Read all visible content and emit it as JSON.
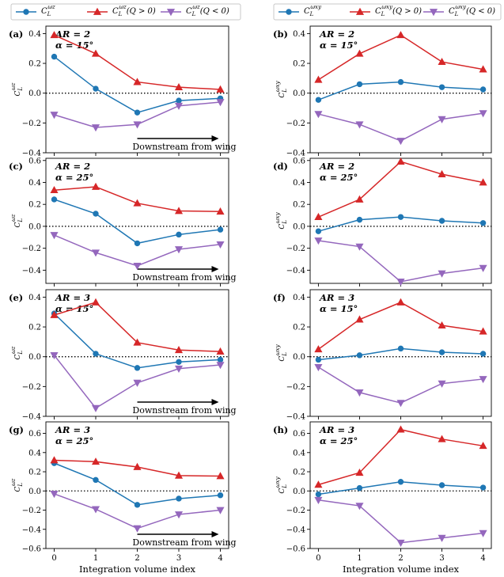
{
  "legends": {
    "left": {
      "entries": [
        {
          "main": "C",
          "sub": "L",
          "sup": "ωz",
          "suffix": "",
          "color": "#1f77b4",
          "marker": "circle"
        },
        {
          "main": "C",
          "sub": "L",
          "sup": "ωz",
          "suffix": "(Q > 0)",
          "color": "#d62728",
          "marker": "triangle-up"
        },
        {
          "main": "C",
          "sub": "L",
          "sup": "ωz",
          "suffix": "(Q < 0)",
          "color": "#9467bd",
          "marker": "triangle-down"
        }
      ]
    },
    "right": {
      "entries": [
        {
          "main": "C",
          "sub": "L",
          "sup": "ωxy",
          "suffix": "",
          "color": "#1f77b4",
          "marker": "circle"
        },
        {
          "main": "C",
          "sub": "L",
          "sup": "ωxy",
          "suffix": "(Q > 0)",
          "color": "#d62728",
          "marker": "triangle-up"
        },
        {
          "main": "C",
          "sub": "L",
          "sup": "ωxy",
          "suffix": "(Q < 0)",
          "color": "#9467bd",
          "marker": "triangle-down"
        }
      ]
    }
  },
  "xlabel": "Integration volume index",
  "downstream_label": "Downstream from wing",
  "chart_data": [
    {
      "type": "line",
      "panel": "(a)",
      "ar_label": "AR = 2",
      "alpha_label": "α = 15°",
      "ylabel": {
        "main": "C",
        "sub": "L",
        "sup": "ωz"
      },
      "x": [
        0,
        1,
        2,
        3,
        4
      ],
      "xlim": [
        -0.2,
        4.2
      ],
      "ylim": [
        -0.4,
        0.45
      ],
      "yticks": [
        -0.4,
        -0.2,
        0.0,
        0.2,
        0.4
      ],
      "xticks": [
        0,
        1,
        2,
        3,
        4
      ],
      "show_xticklabels": false,
      "downstream_arrow": true,
      "series": [
        {
          "name": "Total",
          "color": "#1f77b4",
          "marker": "circle",
          "values": [
            0.245,
            0.03,
            -0.13,
            -0.05,
            -0.035
          ]
        },
        {
          "name": "Q > 0",
          "color": "#d62728",
          "marker": "triangle-up",
          "values": [
            0.39,
            0.265,
            0.075,
            0.04,
            0.025
          ]
        },
        {
          "name": "Q < 0",
          "color": "#9467bd",
          "marker": "triangle-down",
          "values": [
            -0.145,
            -0.23,
            -0.21,
            -0.085,
            -0.06
          ]
        }
      ]
    },
    {
      "type": "line",
      "panel": "(b)",
      "ar_label": "AR = 2",
      "alpha_label": "α = 15°",
      "ylabel": {
        "main": "C",
        "sub": "L",
        "sup": "ωxy"
      },
      "x": [
        0,
        1,
        2,
        3,
        4
      ],
      "xlim": [
        -0.2,
        4.2
      ],
      "ylim": [
        -0.4,
        0.45
      ],
      "yticks": [
        -0.4,
        -0.2,
        0.0,
        0.2,
        0.4
      ],
      "xticks": [
        0,
        1,
        2,
        3,
        4
      ],
      "show_xticklabels": false,
      "downstream_arrow": false,
      "series": [
        {
          "name": "Total",
          "color": "#1f77b4",
          "marker": "circle",
          "values": [
            -0.045,
            0.06,
            0.075,
            0.04,
            0.025
          ]
        },
        {
          "name": "Q > 0",
          "color": "#d62728",
          "marker": "triangle-up",
          "values": [
            0.09,
            0.265,
            0.39,
            0.21,
            0.16
          ]
        },
        {
          "name": "Q < 0",
          "color": "#9467bd",
          "marker": "triangle-down",
          "values": [
            -0.14,
            -0.21,
            -0.32,
            -0.175,
            -0.135
          ]
        }
      ]
    },
    {
      "type": "line",
      "panel": "(c)",
      "ar_label": "AR = 2",
      "alpha_label": "α = 25°",
      "ylabel": {
        "main": "C",
        "sub": "L",
        "sup": "ωz"
      },
      "x": [
        0,
        1,
        2,
        3,
        4
      ],
      "xlim": [
        -0.2,
        4.2
      ],
      "ylim": [
        -0.52,
        0.62
      ],
      "yticks": [
        -0.4,
        -0.2,
        0.0,
        0.2,
        0.4,
        0.6
      ],
      "xticks": [
        0,
        1,
        2,
        3,
        4
      ],
      "show_xticklabels": false,
      "downstream_arrow": true,
      "series": [
        {
          "name": "Total",
          "color": "#1f77b4",
          "marker": "circle",
          "values": [
            0.245,
            0.115,
            -0.155,
            -0.075,
            -0.03
          ]
        },
        {
          "name": "Q > 0",
          "color": "#d62728",
          "marker": "triangle-up",
          "values": [
            0.33,
            0.36,
            0.21,
            0.14,
            0.135
          ]
        },
        {
          "name": "Q < 0",
          "color": "#9467bd",
          "marker": "triangle-down",
          "values": [
            -0.08,
            -0.24,
            -0.36,
            -0.21,
            -0.165
          ]
        }
      ]
    },
    {
      "type": "line",
      "panel": "(d)",
      "ar_label": "AR = 2",
      "alpha_label": "α = 25°",
      "ylabel": {
        "main": "C",
        "sub": "L",
        "sup": "ωxy"
      },
      "x": [
        0,
        1,
        2,
        3,
        4
      ],
      "xlim": [
        -0.2,
        4.2
      ],
      "ylim": [
        -0.52,
        0.62
      ],
      "yticks": [
        -0.4,
        -0.2,
        0.0,
        0.2,
        0.4,
        0.6
      ],
      "xticks": [
        0,
        1,
        2,
        3,
        4
      ],
      "show_xticklabels": false,
      "downstream_arrow": false,
      "series": [
        {
          "name": "Total",
          "color": "#1f77b4",
          "marker": "circle",
          "values": [
            -0.045,
            0.06,
            0.085,
            0.05,
            0.03
          ]
        },
        {
          "name": "Q > 0",
          "color": "#d62728",
          "marker": "triangle-up",
          "values": [
            0.085,
            0.245,
            0.59,
            0.475,
            0.4
          ]
        },
        {
          "name": "Q < 0",
          "color": "#9467bd",
          "marker": "triangle-down",
          "values": [
            -0.13,
            -0.185,
            -0.505,
            -0.43,
            -0.38
          ]
        }
      ]
    },
    {
      "type": "line",
      "panel": "(e)",
      "ar_label": "AR = 3",
      "alpha_label": "α = 15°",
      "ylabel": {
        "main": "C",
        "sub": "L",
        "sup": "ωz"
      },
      "x": [
        0,
        1,
        2,
        3,
        4
      ],
      "xlim": [
        -0.2,
        4.2
      ],
      "ylim": [
        -0.4,
        0.45
      ],
      "yticks": [
        -0.4,
        -0.2,
        0.0,
        0.2,
        0.4
      ],
      "xticks": [
        0,
        1,
        2,
        3,
        4
      ],
      "show_xticklabels": false,
      "downstream_arrow": true,
      "series": [
        {
          "name": "Total",
          "color": "#1f77b4",
          "marker": "circle",
          "values": [
            0.29,
            0.02,
            -0.075,
            -0.035,
            -0.02
          ]
        },
        {
          "name": "Q > 0",
          "color": "#d62728",
          "marker": "triangle-up",
          "values": [
            0.28,
            0.365,
            0.095,
            0.045,
            0.035
          ]
        },
        {
          "name": "Q < 0",
          "color": "#9467bd",
          "marker": "triangle-down",
          "values": [
            0.01,
            -0.345,
            -0.175,
            -0.08,
            -0.055
          ]
        }
      ]
    },
    {
      "type": "line",
      "panel": "(f)",
      "ar_label": "AR = 3",
      "alpha_label": "α = 15°",
      "ylabel": {
        "main": "C",
        "sub": "L",
        "sup": "ωxy"
      },
      "x": [
        0,
        1,
        2,
        3,
        4
      ],
      "xlim": [
        -0.2,
        4.2
      ],
      "ylim": [
        -0.4,
        0.45
      ],
      "yticks": [
        -0.4,
        -0.2,
        0.0,
        0.2,
        0.4
      ],
      "xticks": [
        0,
        1,
        2,
        3,
        4
      ],
      "show_xticklabels": false,
      "downstream_arrow": false,
      "series": [
        {
          "name": "Total",
          "color": "#1f77b4",
          "marker": "circle",
          "values": [
            -0.02,
            0.01,
            0.055,
            0.03,
            0.02
          ]
        },
        {
          "name": "Q > 0",
          "color": "#d62728",
          "marker": "triangle-up",
          "values": [
            0.05,
            0.25,
            0.365,
            0.21,
            0.17
          ]
        },
        {
          "name": "Q < 0",
          "color": "#9467bd",
          "marker": "triangle-down",
          "values": [
            -0.07,
            -0.24,
            -0.31,
            -0.18,
            -0.15
          ]
        }
      ]
    },
    {
      "type": "line",
      "panel": "(g)",
      "ar_label": "AR = 3",
      "alpha_label": "α = 25°",
      "ylabel": {
        "main": "C",
        "sub": "L",
        "sup": "ωz"
      },
      "x": [
        0,
        1,
        2,
        3,
        4
      ],
      "xlim": [
        -0.2,
        4.2
      ],
      "ylim": [
        -0.6,
        0.72
      ],
      "yticks": [
        -0.6,
        -0.4,
        -0.2,
        0.0,
        0.2,
        0.4,
        0.6
      ],
      "xticks": [
        0,
        1,
        2,
        3,
        4
      ],
      "show_xticklabels": true,
      "downstream_arrow": true,
      "series": [
        {
          "name": "Total",
          "color": "#1f77b4",
          "marker": "circle",
          "values": [
            0.29,
            0.115,
            -0.145,
            -0.08,
            -0.045
          ]
        },
        {
          "name": "Q > 0",
          "color": "#d62728",
          "marker": "triangle-up",
          "values": [
            0.32,
            0.305,
            0.25,
            0.16,
            0.155
          ]
        },
        {
          "name": "Q < 0",
          "color": "#9467bd",
          "marker": "triangle-down",
          "values": [
            -0.03,
            -0.19,
            -0.39,
            -0.245,
            -0.2
          ]
        }
      ]
    },
    {
      "type": "line",
      "panel": "(h)",
      "ar_label": "AR = 3",
      "alpha_label": "α = 25°",
      "ylabel": {
        "main": "C",
        "sub": "L",
        "sup": "ωxy"
      },
      "x": [
        0,
        1,
        2,
        3,
        4
      ],
      "xlim": [
        -0.2,
        4.2
      ],
      "ylim": [
        -0.6,
        0.72
      ],
      "yticks": [
        -0.6,
        -0.4,
        -0.2,
        0.0,
        0.2,
        0.4,
        0.6
      ],
      "xticks": [
        0,
        1,
        2,
        3,
        4
      ],
      "show_xticklabels": true,
      "downstream_arrow": false,
      "series": [
        {
          "name": "Total",
          "color": "#1f77b4",
          "marker": "circle",
          "values": [
            -0.035,
            0.03,
            0.095,
            0.06,
            0.035
          ]
        },
        {
          "name": "Q > 0",
          "color": "#d62728",
          "marker": "triangle-up",
          "values": [
            0.065,
            0.19,
            0.64,
            0.54,
            0.47
          ]
        },
        {
          "name": "Q < 0",
          "color": "#9467bd",
          "marker": "triangle-down",
          "values": [
            -0.095,
            -0.155,
            -0.54,
            -0.49,
            -0.44
          ]
        }
      ]
    }
  ]
}
